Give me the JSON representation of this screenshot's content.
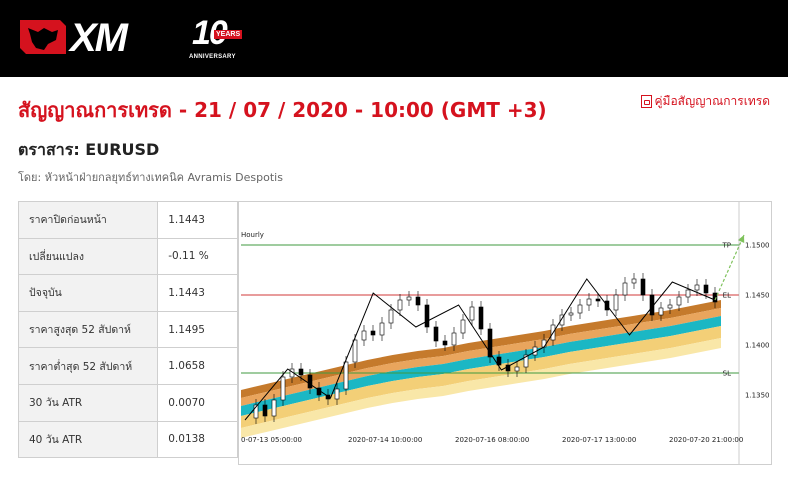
{
  "brand": {
    "logo_text": "XM",
    "anniversary_number": "10",
    "anniversary_years": "YEARS",
    "anniversary_label": "ANNIVERSARY"
  },
  "header": {
    "title": "สัญญาณการเทรด - 21 / 07 / 2020 - 10:00 (GMT +3)",
    "guide_link": "คู่มือสัญญาณการเทรด",
    "instrument": "ตราสาร: EURUSD",
    "author": "โดย: หัวหน้าฝ่ายกลยุทธ์ทางเทคนิค Avramis Despotis"
  },
  "stats": [
    {
      "label": "ราคาปิดก่อนหน้า",
      "value": "1.1443"
    },
    {
      "label": "เปลี่ยนแปลง",
      "value": "-0.11 %"
    },
    {
      "label": "ปัจจุบัน",
      "value": "1.1443"
    },
    {
      "label": "ราคาสูงสุด 52 สัปดาห์",
      "value": "1.1495"
    },
    {
      "label": "ราคาต่ำสุด 52 สัปดาห์",
      "value": "1.0658"
    },
    {
      "label": "30 วัน ATR",
      "value": "0.0070"
    },
    {
      "label": "40 วัน ATR",
      "value": "0.0138"
    }
  ],
  "chart_data": {
    "type": "line",
    "timeframe_label": "Hourly",
    "x_tick_labels": [
      "0-07-13 05:00:00",
      "2020-07-14 10:00:00",
      "2020-07-16 08:00:00",
      "2020-07-17 13:00:00",
      "2020-07-20 21:00:00"
    ],
    "y_tick_labels": [
      "1.1500",
      "1.1450",
      "1.1400",
      "1.1350"
    ],
    "ylim": [
      1.1315,
      1.1525
    ],
    "levels": [
      {
        "label": "TP",
        "value": 1.15,
        "color": "#3f9a3f"
      },
      {
        "label": "EL",
        "value": 1.145,
        "color": "#d03a3a"
      },
      {
        "label": "SL",
        "value": 1.1372,
        "color": "#3f9a3f"
      }
    ],
    "price_series": {
      "name": "price",
      "values": [
        1.1327,
        1.134,
        1.1329,
        1.1345,
        1.1368,
        1.1376,
        1.137,
        1.1357,
        1.135,
        1.1346,
        1.1356,
        1.1383,
        1.1405,
        1.1414,
        1.141,
        1.1422,
        1.1435,
        1.1445,
        1.1448,
        1.144,
        1.1418,
        1.1404,
        1.14,
        1.1412,
        1.1425,
        1.1438,
        1.1416,
        1.1388,
        1.138,
        1.1374,
        1.1378,
        1.139,
        1.1398,
        1.1405,
        1.142,
        1.143,
        1.1432,
        1.144,
        1.1446,
        1.1444,
        1.1435,
        1.145,
        1.1462,
        1.1466,
        1.145,
        1.143,
        1.1437,
        1.144,
        1.1448,
        1.1455,
        1.146,
        1.1452,
        1.1443
      ]
    },
    "zigzag": {
      "name": "zigzag",
      "values": [
        1.1325,
        1.1376,
        1.1347,
        1.1452,
        1.1418,
        1.144,
        1.1375,
        1.1398,
        1.1466,
        1.141,
        1.1463,
        1.1445
      ]
    },
    "forecast_arrow": {
      "from": 1.1445,
      "to": 1.151,
      "color": "#7fc25c"
    },
    "bands": [
      {
        "name": "outer-upper",
        "color": "#c57a2c"
      },
      {
        "name": "inner-upper",
        "color": "#e9a55d"
      },
      {
        "name": "core",
        "color": "#1bb7c4"
      },
      {
        "name": "inner-lower",
        "color": "#f3cf77"
      },
      {
        "name": "outer-lower",
        "color": "#f9e7a8"
      }
    ],
    "band_center": [
      1.1325,
      1.1331,
      1.1337,
      1.1343,
      1.1349,
      1.1355,
      1.136,
      1.1364,
      1.1367,
      1.1372,
      1.1376,
      1.138,
      1.1384,
      1.1389,
      1.1393,
      1.1397,
      1.1401,
      1.1405,
      1.141,
      1.1415
    ]
  }
}
